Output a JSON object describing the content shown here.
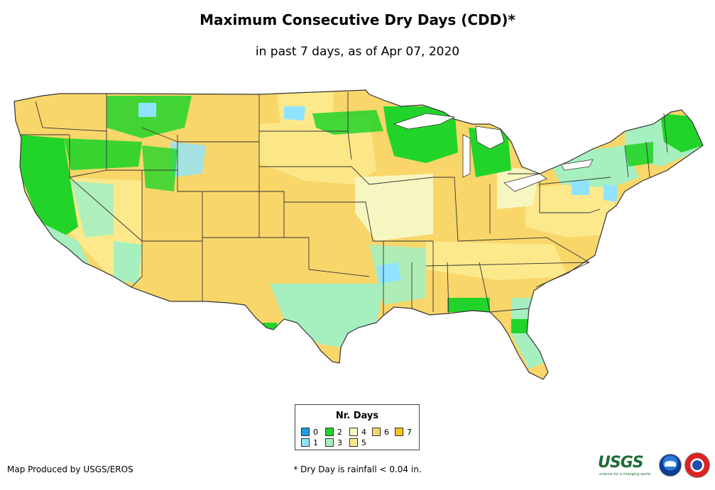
{
  "header": {
    "title": "Maximum Consecutive Dry Days (CDD)*",
    "subtitle": "in past 7 days, as of Apr 07, 2020"
  },
  "legend": {
    "title": "Nr. Days",
    "items": [
      {
        "label": "0",
        "color": "#1f9be6"
      },
      {
        "label": "1",
        "color": "#8fe3ff"
      },
      {
        "label": "2",
        "color": "#22d42a"
      },
      {
        "label": "3",
        "color": "#a6f0c0"
      },
      {
        "label": "4",
        "color": "#f6f6c0"
      },
      {
        "label": "5",
        "color": "#fbe98c"
      },
      {
        "label": "6",
        "color": "#f9d66a"
      },
      {
        "label": "7",
        "color": "#f4c21b"
      }
    ]
  },
  "footer": {
    "producer": "Map Produced by USGS/EROS",
    "footnote": "* Dry Day is rainfall < 0.04 in.",
    "logo_usgs": "USGS",
    "logo_usgs_tagline": "science for a changing world"
  },
  "colors": {
    "land_default": "#f9d66a",
    "state_border": "#333333"
  }
}
